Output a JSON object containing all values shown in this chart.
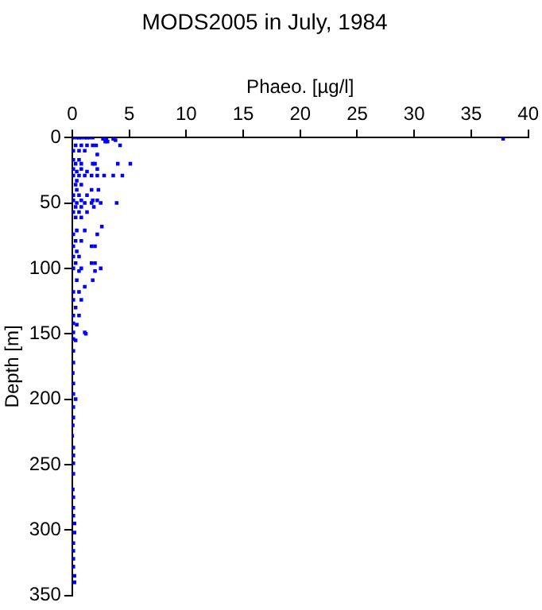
{
  "chart_data": {
    "type": "scatter",
    "title": "MODS2005 in July, 1984",
    "xlabel": "Phaeo. [µg/l]",
    "ylabel": "Depth [m]",
    "marker": "square",
    "grid": false,
    "legend": false,
    "xlim": [
      0,
      40
    ],
    "xticks": [
      0,
      5,
      10,
      15,
      20,
      25,
      30,
      35,
      40
    ],
    "ylim": [
      350,
      0
    ],
    "yticks": [
      0,
      50,
      100,
      150,
      200,
      250,
      300,
      350
    ],
    "series": [
      {
        "color": "#0000ff",
        "x": [
          0.1,
          0.4,
          0.6,
          0.8,
          1.1,
          1.3,
          1.5,
          1.8,
          2.7,
          3.0,
          3.6,
          3.8,
          37.8,
          2.9,
          3.1,
          4.2,
          0.3,
          0.8,
          1.3,
          1.8,
          2.1,
          0.1,
          0.6,
          1.1,
          2.2,
          0.1,
          0.6,
          0.3,
          0.8,
          1.8,
          2.0,
          4.0,
          5.1,
          0.1,
          0.8,
          2.2,
          0.4,
          1.3,
          0.1,
          0.6,
          1.1,
          1.7,
          2.2,
          2.8,
          3.6,
          4.4,
          0.4,
          0.3,
          0.8,
          0.4,
          1.7,
          2.3,
          0.1,
          0.6,
          1.3,
          0.1,
          0.8,
          1.8,
          2.2,
          0.4,
          1.1,
          1.7,
          2.5,
          3.9,
          0.3,
          0.8,
          1.9,
          0.1,
          0.6,
          1.3,
          0.3,
          0.8,
          2.6,
          0.4,
          1.1,
          0.1,
          2.2,
          0.3,
          0.8,
          0.1,
          1.7,
          2.0,
          0.4,
          0.1,
          0.6,
          0.3,
          1.7,
          2.0,
          0.1,
          0.8,
          2.5,
          0.6,
          2.0,
          0.4,
          1.8,
          1.1,
          0.1,
          0.6,
          0.1,
          0.8,
          0.3,
          0.1,
          0.6,
          0.1,
          0.1,
          1.1,
          0.1,
          1.2,
          0.4,
          0.3,
          0.1,
          0.1,
          0.05,
          0.1,
          0.1,
          0.3,
          0.1,
          0.1,
          0.05,
          0,
          0.1,
          0.1,
          0.1,
          0.1,
          0.05,
          0.1,
          0.1,
          0.1,
          0.2,
          0.2,
          0.1,
          0.1,
          0.1,
          0.1,
          0.2,
          0.2
        ],
        "values": [
          0,
          0,
          0,
          0,
          0,
          0,
          0,
          0,
          1,
          1,
          1,
          2,
          1,
          3,
          3,
          6,
          6,
          6,
          6,
          6,
          6,
          10,
          10,
          10,
          13,
          17,
          17,
          20,
          20,
          20,
          20,
          20,
          20,
          24,
          24,
          24,
          26,
          26,
          29,
          29,
          29,
          29,
          29,
          29,
          29,
          29,
          33,
          36,
          36,
          40,
          40,
          40,
          44,
          44,
          44,
          48,
          48,
          48,
          48,
          50,
          50,
          50,
          50,
          50,
          53,
          53,
          53,
          57,
          57,
          57,
          61,
          61,
          68,
          71,
          71,
          74,
          74,
          79,
          79,
          83,
          83,
          83,
          87,
          91,
          91,
          96,
          96,
          96,
          100,
          100,
          100,
          102,
          102,
          109,
          109,
          114,
          118,
          118,
          124,
          124,
          130,
          136,
          136,
          142,
          149,
          149,
          154,
          150,
          143,
          155,
          163,
          172,
          180,
          188,
          196,
          200,
          206,
          214,
          220,
          228,
          237,
          243,
          249,
          257,
          269,
          275,
          283,
          289,
          295,
          302,
          310,
          316,
          322,
          328,
          335,
          340
        ]
      }
    ]
  }
}
